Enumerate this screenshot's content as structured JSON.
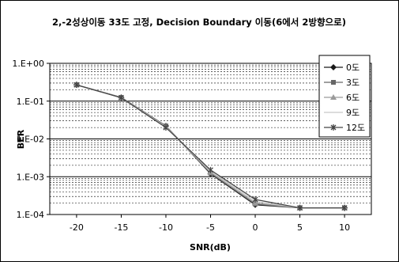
{
  "chart_data": {
    "type": "line",
    "title": "2,-2성상이동 33도 고정, Decision Boundary 이동(6에서 2방향으로)",
    "xlabel": "SNR(dB)",
    "ylabel": "BER",
    "x": [
      -20,
      -15,
      -10,
      -5,
      0,
      5,
      10
    ],
    "xlim": [
      -23,
      13
    ],
    "y_scale": "log",
    "ylim": [
      0.0001,
      1
    ],
    "yticks": [
      {
        "value": 1,
        "label": "1.E+00"
      },
      {
        "value": 0.1,
        "label": "1.E-01"
      },
      {
        "value": 0.01,
        "label": "1.E-02"
      },
      {
        "value": 0.001,
        "label": "1.E-03"
      },
      {
        "value": 0.0001,
        "label": "1.E-04"
      }
    ],
    "xticks": [
      "-20",
      "-15",
      "-10",
      "-5",
      "0",
      "5",
      "10"
    ],
    "grid": true,
    "legend_position": "top-right",
    "series": [
      {
        "name": "0도",
        "color": "#1a1a1a",
        "marker": "diamond",
        "values": [
          0.27,
          0.125,
          0.022,
          0.0012,
          0.00018,
          0.00015,
          0.00015
        ]
      },
      {
        "name": "3도",
        "color": "#666666",
        "marker": "square",
        "values": [
          0.27,
          0.125,
          0.022,
          0.00125,
          0.00019,
          0.00015,
          0.00015
        ]
      },
      {
        "name": "6도",
        "color": "#9a9a9a",
        "marker": "triangle",
        "values": [
          0.27,
          0.124,
          0.021,
          0.0013,
          0.0002,
          0.00015,
          0.00015
        ]
      },
      {
        "name": "9도",
        "color": "#c8c8c8",
        "marker": "none",
        "values": [
          0.27,
          0.123,
          0.021,
          0.0014,
          0.00022,
          0.00015,
          0.00015
        ]
      },
      {
        "name": "12도",
        "color": "#444444",
        "marker": "asterisk",
        "values": [
          0.27,
          0.123,
          0.02,
          0.0015,
          0.00025,
          0.00015,
          0.00015
        ]
      }
    ]
  }
}
